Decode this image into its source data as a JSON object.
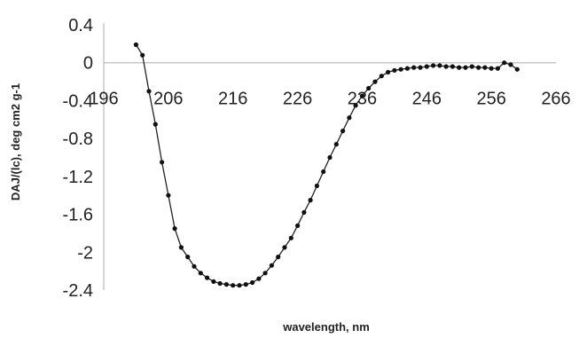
{
  "chart_data": {
    "type": "line",
    "title": "",
    "xlabel": "wavelength, nm",
    "ylabel": "DAJ/(lc), deg cm2 g-1",
    "xlim": [
      196,
      266
    ],
    "ylim": [
      -2.4,
      0.4
    ],
    "x_ticks": [
      "196",
      "206",
      "216",
      "226",
      "236",
      "246",
      "256",
      "266"
    ],
    "y_ticks": [
      "0.4",
      "0",
      "-0.4",
      "-0.8",
      "-1.2",
      "-1.6",
      "-2",
      "-2.4"
    ],
    "x_tick_values": [
      196,
      206,
      216,
      226,
      236,
      246,
      256,
      266
    ],
    "y_tick_values": [
      0.4,
      0,
      -0.4,
      -0.8,
      -1.2,
      -1.6,
      -2,
      -2.4
    ],
    "grid": false,
    "legend": "none",
    "colors": {
      "line": "#222222",
      "marker": "#111111",
      "axis": "#bbbbbb",
      "text": "#222222"
    },
    "series": [
      {
        "x": [
          201,
          202,
          203,
          204,
          205,
          206,
          207,
          208,
          209,
          210,
          211,
          212,
          213,
          214,
          215,
          216,
          217,
          218,
          219,
          220,
          221,
          222,
          223,
          224,
          225,
          226,
          227,
          228,
          229,
          230,
          231,
          232,
          233,
          234,
          235,
          236,
          237,
          238,
          239,
          240,
          241,
          242,
          243,
          244,
          245,
          246,
          247,
          248,
          249,
          250,
          251,
          252,
          253,
          254,
          255,
          256,
          257,
          258,
          259,
          260
        ],
        "y": [
          0.19,
          0.08,
          -0.3,
          -0.65,
          -1.05,
          -1.4,
          -1.75,
          -1.95,
          -2.05,
          -2.15,
          -2.22,
          -2.27,
          -2.31,
          -2.33,
          -2.34,
          -2.35,
          -2.35,
          -2.34,
          -2.32,
          -2.28,
          -2.22,
          -2.14,
          -2.05,
          -1.95,
          -1.85,
          -1.72,
          -1.58,
          -1.45,
          -1.3,
          -1.15,
          -1.0,
          -0.86,
          -0.72,
          -0.58,
          -0.45,
          -0.35,
          -0.27,
          -0.2,
          -0.14,
          -0.1,
          -0.08,
          -0.07,
          -0.06,
          -0.05,
          -0.05,
          -0.04,
          -0.03,
          -0.03,
          -0.04,
          -0.04,
          -0.05,
          -0.05,
          -0.04,
          -0.05,
          -0.05,
          -0.06,
          -0.06,
          0.0,
          -0.02,
          -0.07
        ]
      }
    ]
  }
}
